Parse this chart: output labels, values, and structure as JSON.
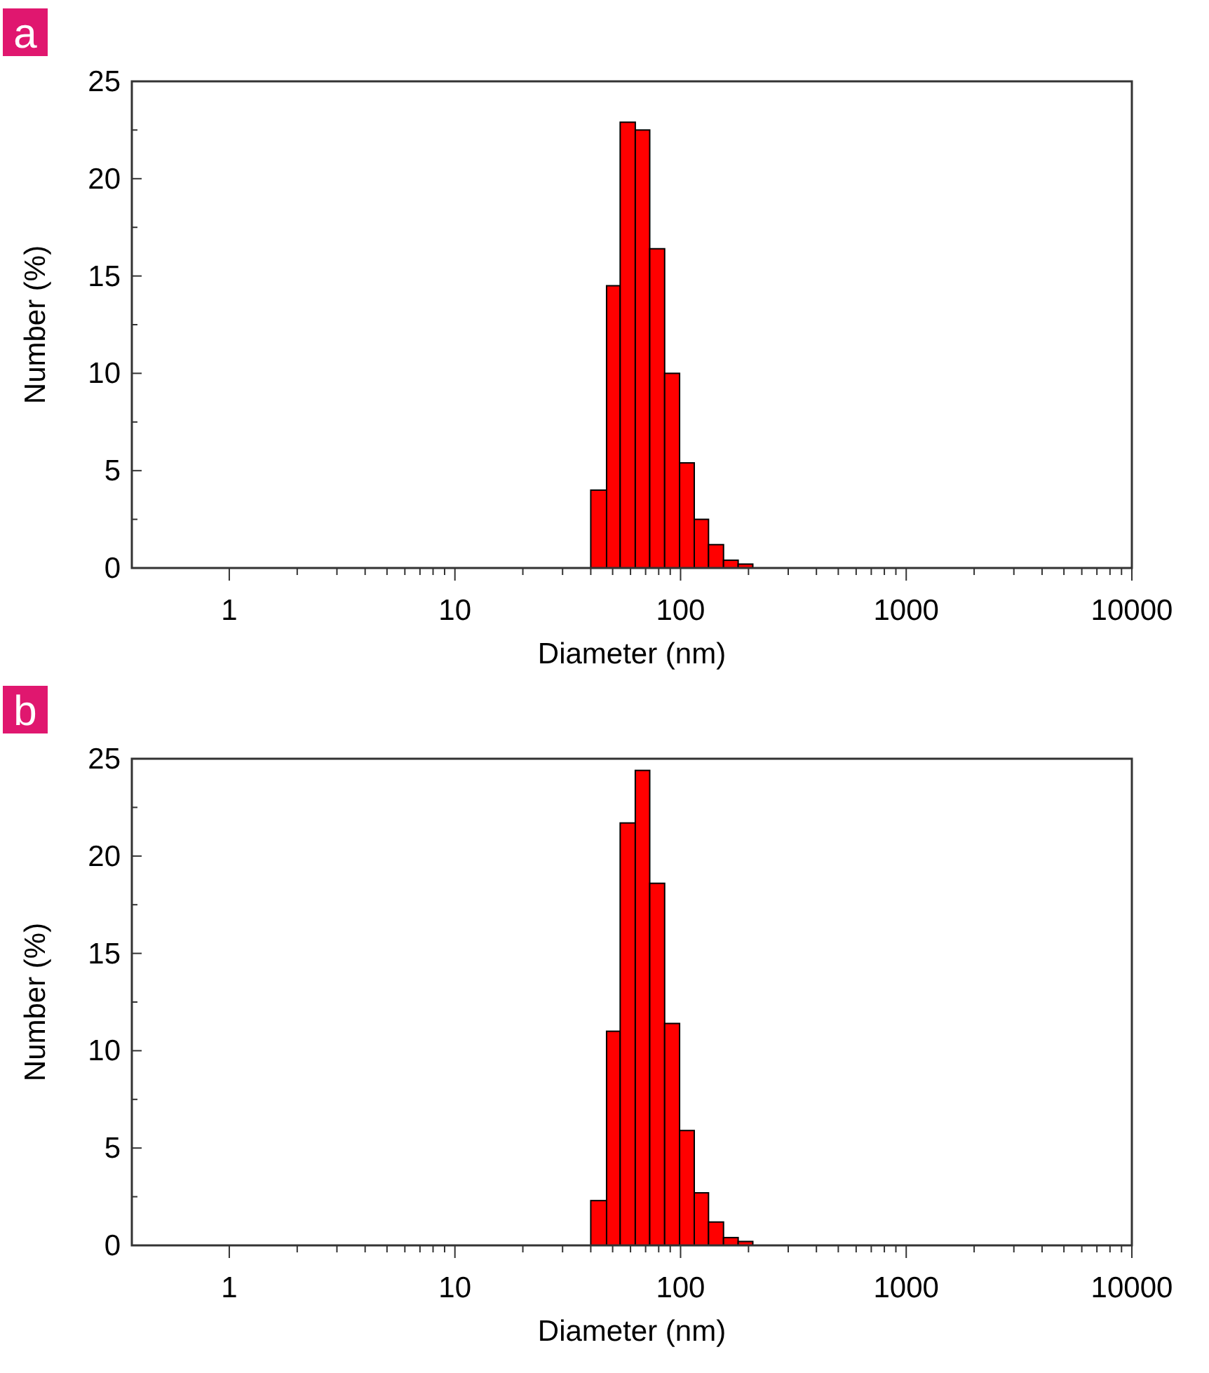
{
  "chart_data": [
    {
      "type": "histogram",
      "title": "a",
      "xlabel": "Diameter (nm)",
      "ylabel": "Number (%)",
      "log": "x",
      "color": "#ff0000",
      "bins": [
        40,
        47,
        54,
        63,
        73,
        85,
        99,
        115,
        133,
        155,
        180,
        209
      ],
      "values": [
        4.0,
        14.5,
        22.9,
        22.5,
        16.4,
        10.0,
        5.4,
        2.5,
        1.2,
        0.4,
        0.2
      ],
      "xlim": [
        0.37,
        10000
      ],
      "xticks": [
        1,
        {
          "value": 2,
          "label": null
        },
        {
          "value": 3,
          "label": null
        },
        {
          "value": 4,
          "label": null
        },
        {
          "value": 5,
          "label": null
        },
        {
          "value": 6,
          "label": null
        },
        {
          "value": 7,
          "label": null
        },
        {
          "value": 8,
          "label": null
        },
        {
          "value": 9,
          "label": null
        },
        10,
        {
          "value": 20,
          "label": null
        },
        {
          "value": 30,
          "label": null
        },
        {
          "value": 40,
          "label": null
        },
        {
          "value": 50,
          "label": null
        },
        {
          "value": 60,
          "label": null
        },
        {
          "value": 70,
          "label": null
        },
        {
          "value": 80,
          "label": null
        },
        {
          "value": 90,
          "label": null
        },
        100,
        {
          "value": 200,
          "label": null
        },
        {
          "value": 300,
          "label": null
        },
        {
          "value": 400,
          "label": null
        },
        {
          "value": 500,
          "label": null
        },
        {
          "value": 600,
          "label": null
        },
        {
          "value": 700,
          "label": null
        },
        {
          "value": 800,
          "label": null
        },
        {
          "value": 900,
          "label": null
        },
        1000,
        {
          "value": 2000,
          "label": null
        },
        {
          "value": 3000,
          "label": null
        },
        {
          "value": 4000,
          "label": null
        },
        {
          "value": 5000,
          "label": null
        },
        {
          "value": 6000,
          "label": null
        },
        {
          "value": 7000,
          "label": null
        },
        {
          "value": 8000,
          "label": null
        },
        {
          "value": 9000,
          "label": null
        },
        10000
      ],
      "ylim": [
        0,
        25
      ],
      "yticks": [
        0,
        {
          "value": 2.5,
          "label": null
        },
        5,
        {
          "value": 7.5,
          "label": null
        },
        10,
        {
          "value": 12.5,
          "label": null
        },
        15,
        {
          "value": 17.5,
          "label": null
        },
        20,
        {
          "value": 22.5,
          "label": null
        },
        25
      ]
    },
    {
      "type": "histogram",
      "title": "b",
      "xlabel": "Diameter (nm)",
      "ylabel": "Number (%)",
      "log": "x",
      "color": "#ff0000",
      "bins": [
        40,
        47,
        54,
        63,
        73,
        85,
        99,
        115,
        133,
        155,
        180,
        209
      ],
      "values": [
        2.3,
        11.0,
        21.7,
        24.4,
        18.6,
        11.4,
        5.9,
        2.7,
        1.2,
        0.4,
        0.2
      ],
      "xlim": [
        0.37,
        10000
      ],
      "xticks": [
        1,
        {
          "value": 2,
          "label": null
        },
        {
          "value": 3,
          "label": null
        },
        {
          "value": 4,
          "label": null
        },
        {
          "value": 5,
          "label": null
        },
        {
          "value": 6,
          "label": null
        },
        {
          "value": 7,
          "label": null
        },
        {
          "value": 8,
          "label": null
        },
        {
          "value": 9,
          "label": null
        },
        10,
        {
          "value": 20,
          "label": null
        },
        {
          "value": 30,
          "label": null
        },
        {
          "value": 40,
          "label": null
        },
        {
          "value": 50,
          "label": null
        },
        {
          "value": 60,
          "label": null
        },
        {
          "value": 70,
          "label": null
        },
        {
          "value": 80,
          "label": null
        },
        {
          "value": 90,
          "label": null
        },
        100,
        {
          "value": 200,
          "label": null
        },
        {
          "value": 300,
          "label": null
        },
        {
          "value": 400,
          "label": null
        },
        {
          "value": 500,
          "label": null
        },
        {
          "value": 600,
          "label": null
        },
        {
          "value": 700,
          "label": null
        },
        {
          "value": 800,
          "label": null
        },
        {
          "value": 900,
          "label": null
        },
        1000,
        {
          "value": 2000,
          "label": null
        },
        {
          "value": 3000,
          "label": null
        },
        {
          "value": 4000,
          "label": null
        },
        {
          "value": 5000,
          "label": null
        },
        {
          "value": 6000,
          "label": null
        },
        {
          "value": 7000,
          "label": null
        },
        {
          "value": 8000,
          "label": null
        },
        {
          "value": 9000,
          "label": null
        },
        10000
      ],
      "ylim": [
        0,
        25
      ],
      "yticks": [
        0,
        {
          "value": 2.5,
          "label": null
        },
        5,
        {
          "value": 7.5,
          "label": null
        },
        10,
        {
          "value": 12.5,
          "label": null
        },
        15,
        {
          "value": 17.5,
          "label": null
        },
        20,
        {
          "value": 22.5,
          "label": null
        },
        25
      ]
    }
  ]
}
